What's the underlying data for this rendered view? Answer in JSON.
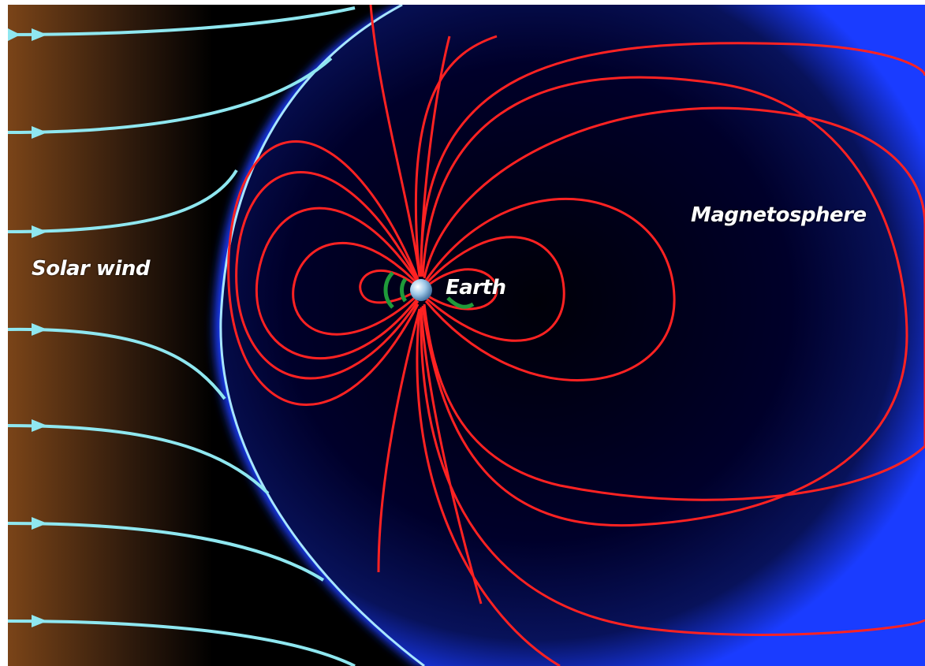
{
  "diagram": {
    "labels": {
      "solar_wind": "Solar wind",
      "earth": "Earth",
      "magnetosphere": "Magnetosphere"
    },
    "colors": {
      "background": "#000000",
      "solar_wind_gradient_start": "#7a4418",
      "solar_wind_lines": "#8fe7f0",
      "magnetopause": "#a8e6ff",
      "magnetosphere_glow": "#1a3cff",
      "field_lines": "#ff2222",
      "label_text": "#ffffff"
    },
    "icons": [
      "earth-globe-icon",
      "flow-arrow-icon"
    ]
  }
}
